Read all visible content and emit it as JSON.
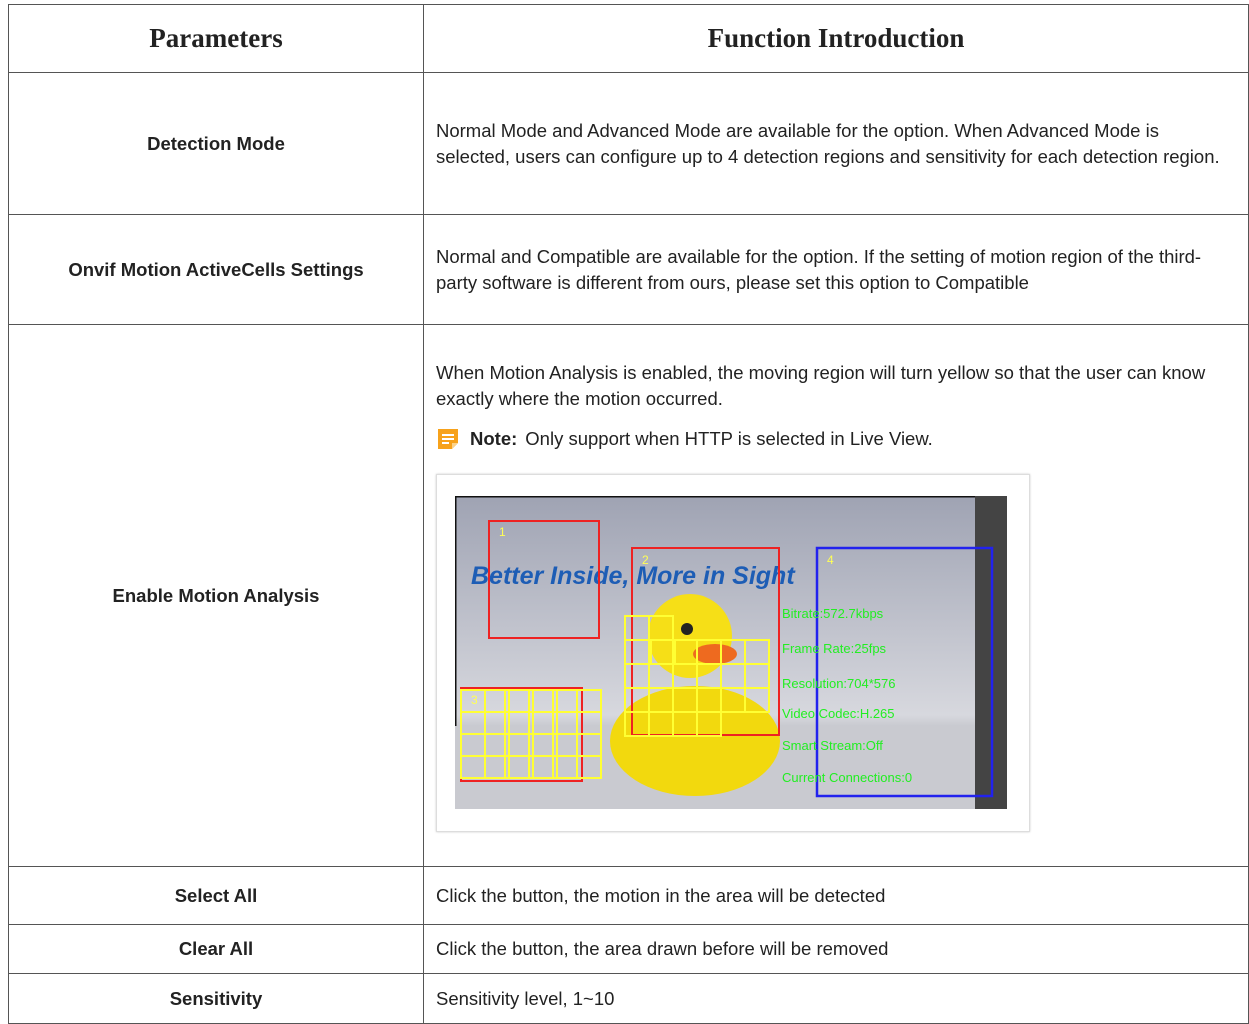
{
  "table": {
    "header": [
      "Parameters",
      "Function Introduction"
    ],
    "rows": [
      [
        "Detection Mode",
        "Normal Mode and Advanced Mode are available for the option. When Advanced Mode is selected, users can configure up to 4 detection regions and sensitivity for each detection region."
      ],
      [
        "Onvif Motion ActiveCells Settings",
        "Normal and Compatible are available for the option. If the setting of motion region of the third-party software is different from ours, please set this option to Compatible"
      ],
      [
        "Enable Motion Analysis",
        "When Motion Analysis is enabled, the moving region will turn yellow so that the user can know exactly where the motion occurred."
      ],
      [
        "Select All",
        "Click the button, the motion in the area will be detected"
      ],
      [
        "Clear All",
        "Click the button, the area drawn before will be removed"
      ],
      [
        "Sensitivity",
        "Sensitivity level, 1~10"
      ]
    ]
  },
  "note": {
    "label": "Note:",
    "text": "Only support when HTTP is selected in Live View."
  },
  "image": {
    "banner": "Better Inside, More in Sight",
    "regions": [
      "1",
      "2",
      "3",
      "4"
    ],
    "overlay": [
      "Bitrate:572.7kbps",
      "Frame Rate:25fps",
      "Resolution:704*576",
      "Video Codec:H.265",
      "Smart Stream:Off",
      "Current Connections:0"
    ]
  }
}
